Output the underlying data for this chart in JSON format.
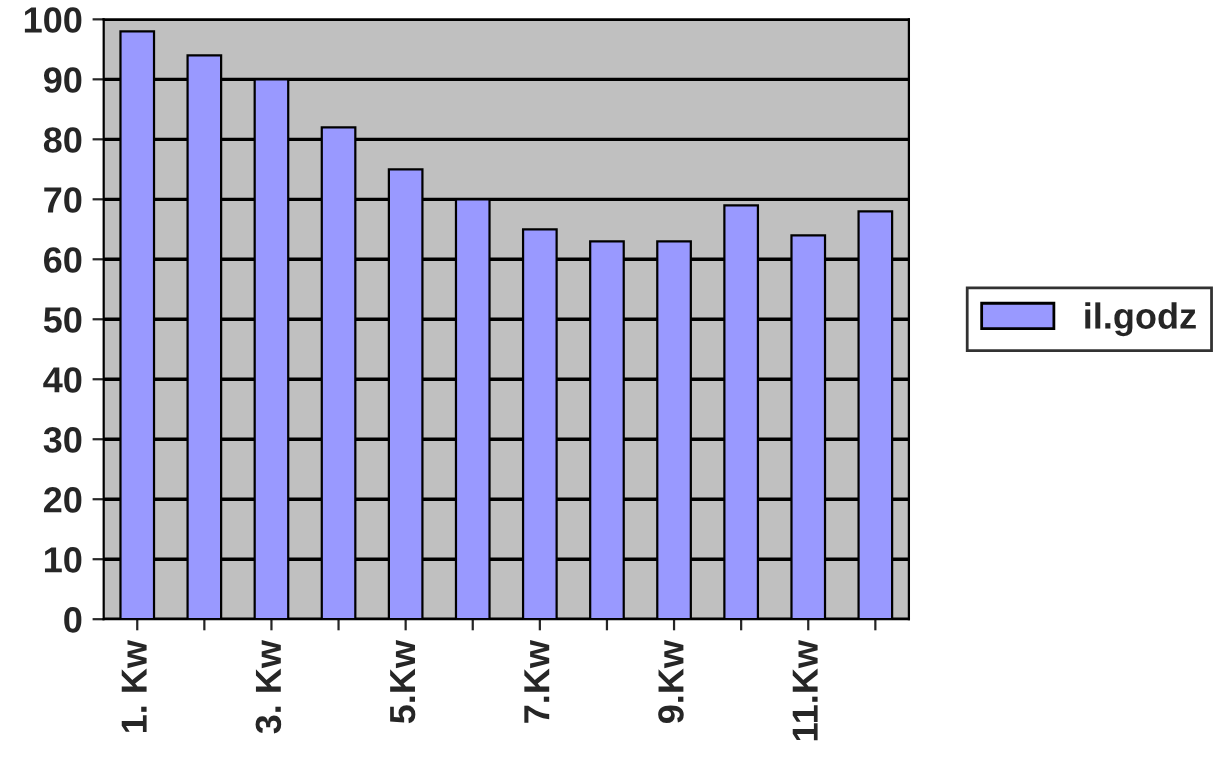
{
  "chart_data": {
    "type": "bar",
    "categories": [
      "1. Kw",
      null,
      "3. Kw",
      null,
      "5.Kw",
      null,
      "7.Kw",
      null,
      "9.Kw",
      null,
      "11.Kw",
      null
    ],
    "series": [
      {
        "name": "il.godz",
        "color": "#9999ff",
        "values": [
          98,
          94,
          90,
          82,
          75,
          70,
          65,
          63,
          63,
          69,
          64,
          68
        ]
      }
    ],
    "ylim": [
      0,
      100
    ],
    "yticks": [
      0,
      10,
      20,
      30,
      40,
      50,
      60,
      70,
      80,
      90,
      100
    ],
    "grid": "y",
    "legend": "right"
  }
}
